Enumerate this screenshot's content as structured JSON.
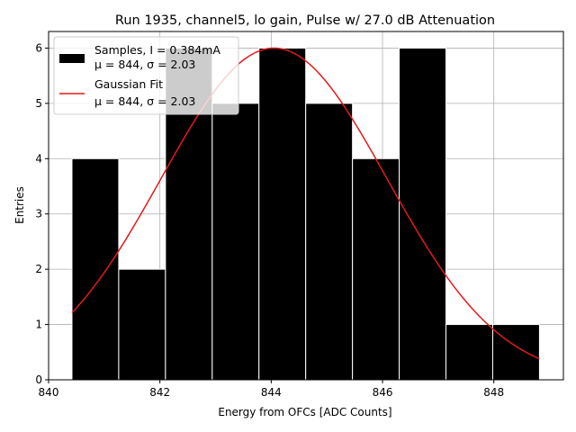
{
  "chart_data": {
    "type": "bar",
    "title": "Run 1935, channel5, lo gain, Pulse w/ 27.0 dB Attenuation",
    "xlabel": "Energy from OFCs [ADC Counts]",
    "ylabel": "Entries",
    "xlim": [
      840,
      849.25
    ],
    "ylim": [
      0,
      6.3
    ],
    "xticks": [
      "840",
      "842",
      "844",
      "846",
      "848"
    ],
    "yticks": [
      "0",
      "1",
      "2",
      "3",
      "4",
      "5",
      "6"
    ],
    "grid": true,
    "legend_position": "top-left",
    "histogram": {
      "name": "Samples, I = 0.384mA",
      "stats": "μ = 844, σ = 2.03",
      "color": "#000000",
      "bin_edges": [
        840.42,
        841.26,
        842.1,
        842.94,
        843.78,
        844.62,
        845.46,
        846.3,
        847.14,
        847.98,
        848.82
      ],
      "counts": [
        4,
        2,
        6,
        5,
        6,
        5,
        4,
        6,
        1,
        1
      ]
    },
    "fit": {
      "name": "Gaussian Fit",
      "stats": "μ = 844, σ = 2.03",
      "color": "#e41a1c",
      "mu": 844.05,
      "sigma": 2.03,
      "amplitude": 6.0,
      "x_range": [
        840.42,
        848.82
      ]
    }
  }
}
